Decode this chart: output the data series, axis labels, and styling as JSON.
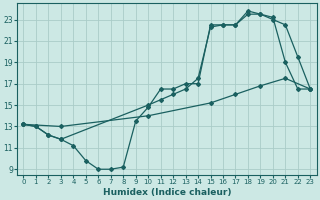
{
  "xlabel": "Humidex (Indice chaleur)",
  "xlim": [
    -0.5,
    23.5
  ],
  "ylim": [
    8.5,
    24.5
  ],
  "yticks": [
    9,
    11,
    13,
    15,
    17,
    19,
    21,
    23
  ],
  "xticks": [
    0,
    1,
    2,
    3,
    4,
    5,
    6,
    7,
    8,
    9,
    10,
    11,
    12,
    13,
    14,
    15,
    16,
    17,
    18,
    19,
    20,
    21,
    22,
    23
  ],
  "bg_color": "#cce8e4",
  "grid_color": "#aaccc8",
  "line_color": "#1a6060",
  "line1_x": [
    0,
    1,
    2,
    3,
    4,
    5,
    6,
    7,
    8,
    9,
    10,
    11,
    12,
    13,
    14,
    15,
    16,
    17,
    18,
    19,
    20,
    21,
    22,
    23
  ],
  "line1_y": [
    13.2,
    13.0,
    12.2,
    11.8,
    11.2,
    9.8,
    9.0,
    9.0,
    9.2,
    13.5,
    14.8,
    16.5,
    16.5,
    17.0,
    17.0,
    22.5,
    22.5,
    22.5,
    23.5,
    23.5,
    23.0,
    22.5,
    19.5,
    16.5
  ],
  "line2_x": [
    0,
    1,
    2,
    3,
    10,
    11,
    12,
    13,
    14,
    15,
    16,
    17,
    18,
    19,
    20,
    21,
    22,
    23
  ],
  "line2_y": [
    13.2,
    13.0,
    12.2,
    11.8,
    15.0,
    15.5,
    16.0,
    16.5,
    17.5,
    22.3,
    22.5,
    22.5,
    23.8,
    23.5,
    23.2,
    19.0,
    16.5,
    16.5
  ],
  "line3_x": [
    0,
    3,
    10,
    15,
    17,
    19,
    21,
    23
  ],
  "line3_y": [
    13.2,
    13.0,
    14.0,
    15.2,
    16.0,
    16.8,
    17.5,
    16.5
  ]
}
